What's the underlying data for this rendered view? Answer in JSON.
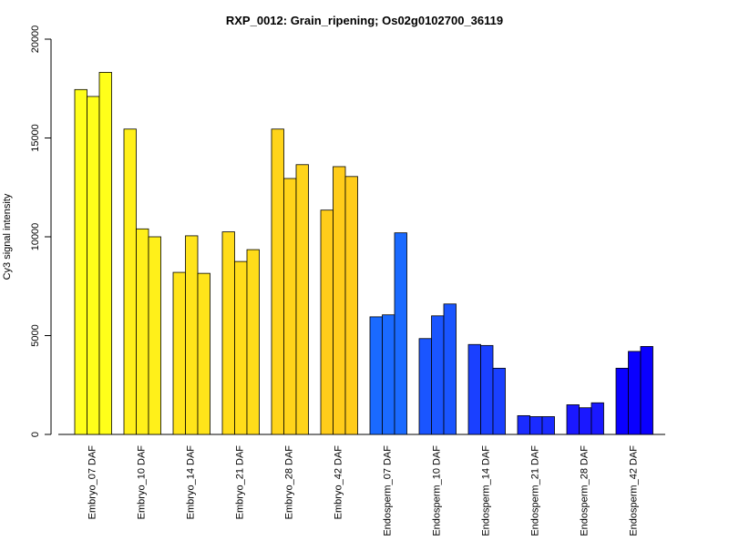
{
  "chart_data": {
    "type": "bar",
    "title": "RXP_0012: Grain_ripening; Os02g0102700_36119",
    "xlabel": "",
    "ylabel": "Cy3 signal intensity",
    "ylim": [
      0,
      20000
    ],
    "yticks": [
      0,
      5000,
      10000,
      15000,
      20000
    ],
    "grid": false,
    "legend": "none",
    "groups": [
      {
        "label": "Embryo_07 DAF",
        "color": "#FFFF1A",
        "values": [
          17450,
          17100,
          18320
        ]
      },
      {
        "label": "Embryo_10 DAF",
        "color": "#FFF01A",
        "values": [
          15450,
          10400,
          10000
        ]
      },
      {
        "label": "Embryo_14 DAF",
        "color": "#FFE41A",
        "values": [
          8200,
          10050,
          8150
        ]
      },
      {
        "label": "Embryo_21 DAF",
        "color": "#FFDC1A",
        "values": [
          10250,
          8750,
          9350
        ]
      },
      {
        "label": "Embryo_28 DAF",
        "color": "#FFD41A",
        "values": [
          15450,
          12950,
          13650
        ]
      },
      {
        "label": "Embryo_42 DAF",
        "color": "#FFCC1A",
        "values": [
          11350,
          13550,
          13050
        ]
      },
      {
        "label": "Endosperm_07 DAF",
        "color": "#1A6AFF",
        "values": [
          5950,
          6050,
          10200
        ]
      },
      {
        "label": "Endosperm_10 DAF",
        "color": "#1A55FF",
        "values": [
          4850,
          6000,
          6600
        ]
      },
      {
        "label": "Endosperm_14 DAF",
        "color": "#1A40FF",
        "values": [
          4550,
          4500,
          3350
        ]
      },
      {
        "label": "Endosperm_21 DAF",
        "color": "#1A2BFF",
        "values": [
          950,
          900,
          900
        ]
      },
      {
        "label": "Endosperm_28 DAF",
        "color": "#1A18FF",
        "values": [
          1500,
          1350,
          1600
        ]
      },
      {
        "label": "Endosperm_42 DAF",
        "color": "#0A00FF",
        "values": [
          3350,
          4200,
          4450
        ]
      }
    ]
  }
}
